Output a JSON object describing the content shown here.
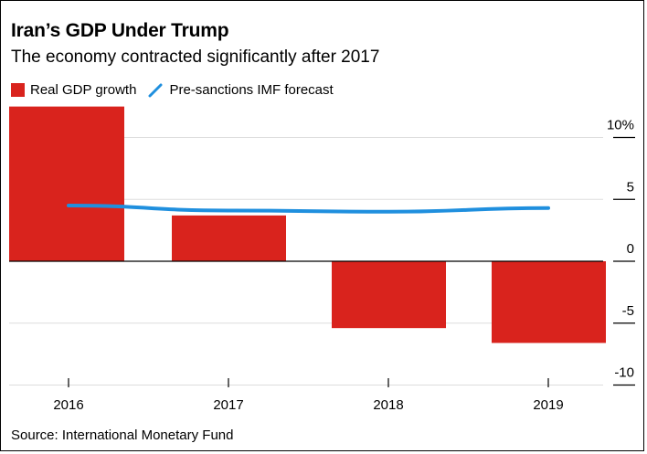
{
  "header": {
    "title": "Iran’s GDP Under Trump",
    "subtitle": "The economy contracted significantly after 2017"
  },
  "legend": {
    "bar_label": "Real GDP growth",
    "line_label": "Pre-sanctions IMF forecast"
  },
  "footer": {
    "source": "Source: International Monetary Fund"
  },
  "colors": {
    "bar": "#d9231d",
    "line": "#1f8fde",
    "grid": "#dddddd"
  },
  "chart_data": {
    "type": "bar",
    "title": "Iran’s GDP Under Trump",
    "subtitle": "The economy contracted significantly after 2017",
    "categories": [
      "2016",
      "2017",
      "2018",
      "2019"
    ],
    "series": [
      {
        "name": "Real GDP growth",
        "type": "bar",
        "values": [
          12.5,
          3.7,
          -5.4,
          -6.6
        ]
      },
      {
        "name": "Pre-sanctions IMF forecast",
        "type": "line",
        "values": [
          4.5,
          4.1,
          4.0,
          4.3
        ]
      }
    ],
    "ylim": [
      -10,
      10
    ],
    "yticks": [
      10,
      5,
      0,
      -5,
      -10
    ],
    "ytick_labels": [
      "10%",
      "5",
      "0",
      "-5",
      "-10"
    ],
    "y_axis_side": "right",
    "grid": true,
    "legend_position": "top-left",
    "source": "Source: International Monetary Fund"
  }
}
